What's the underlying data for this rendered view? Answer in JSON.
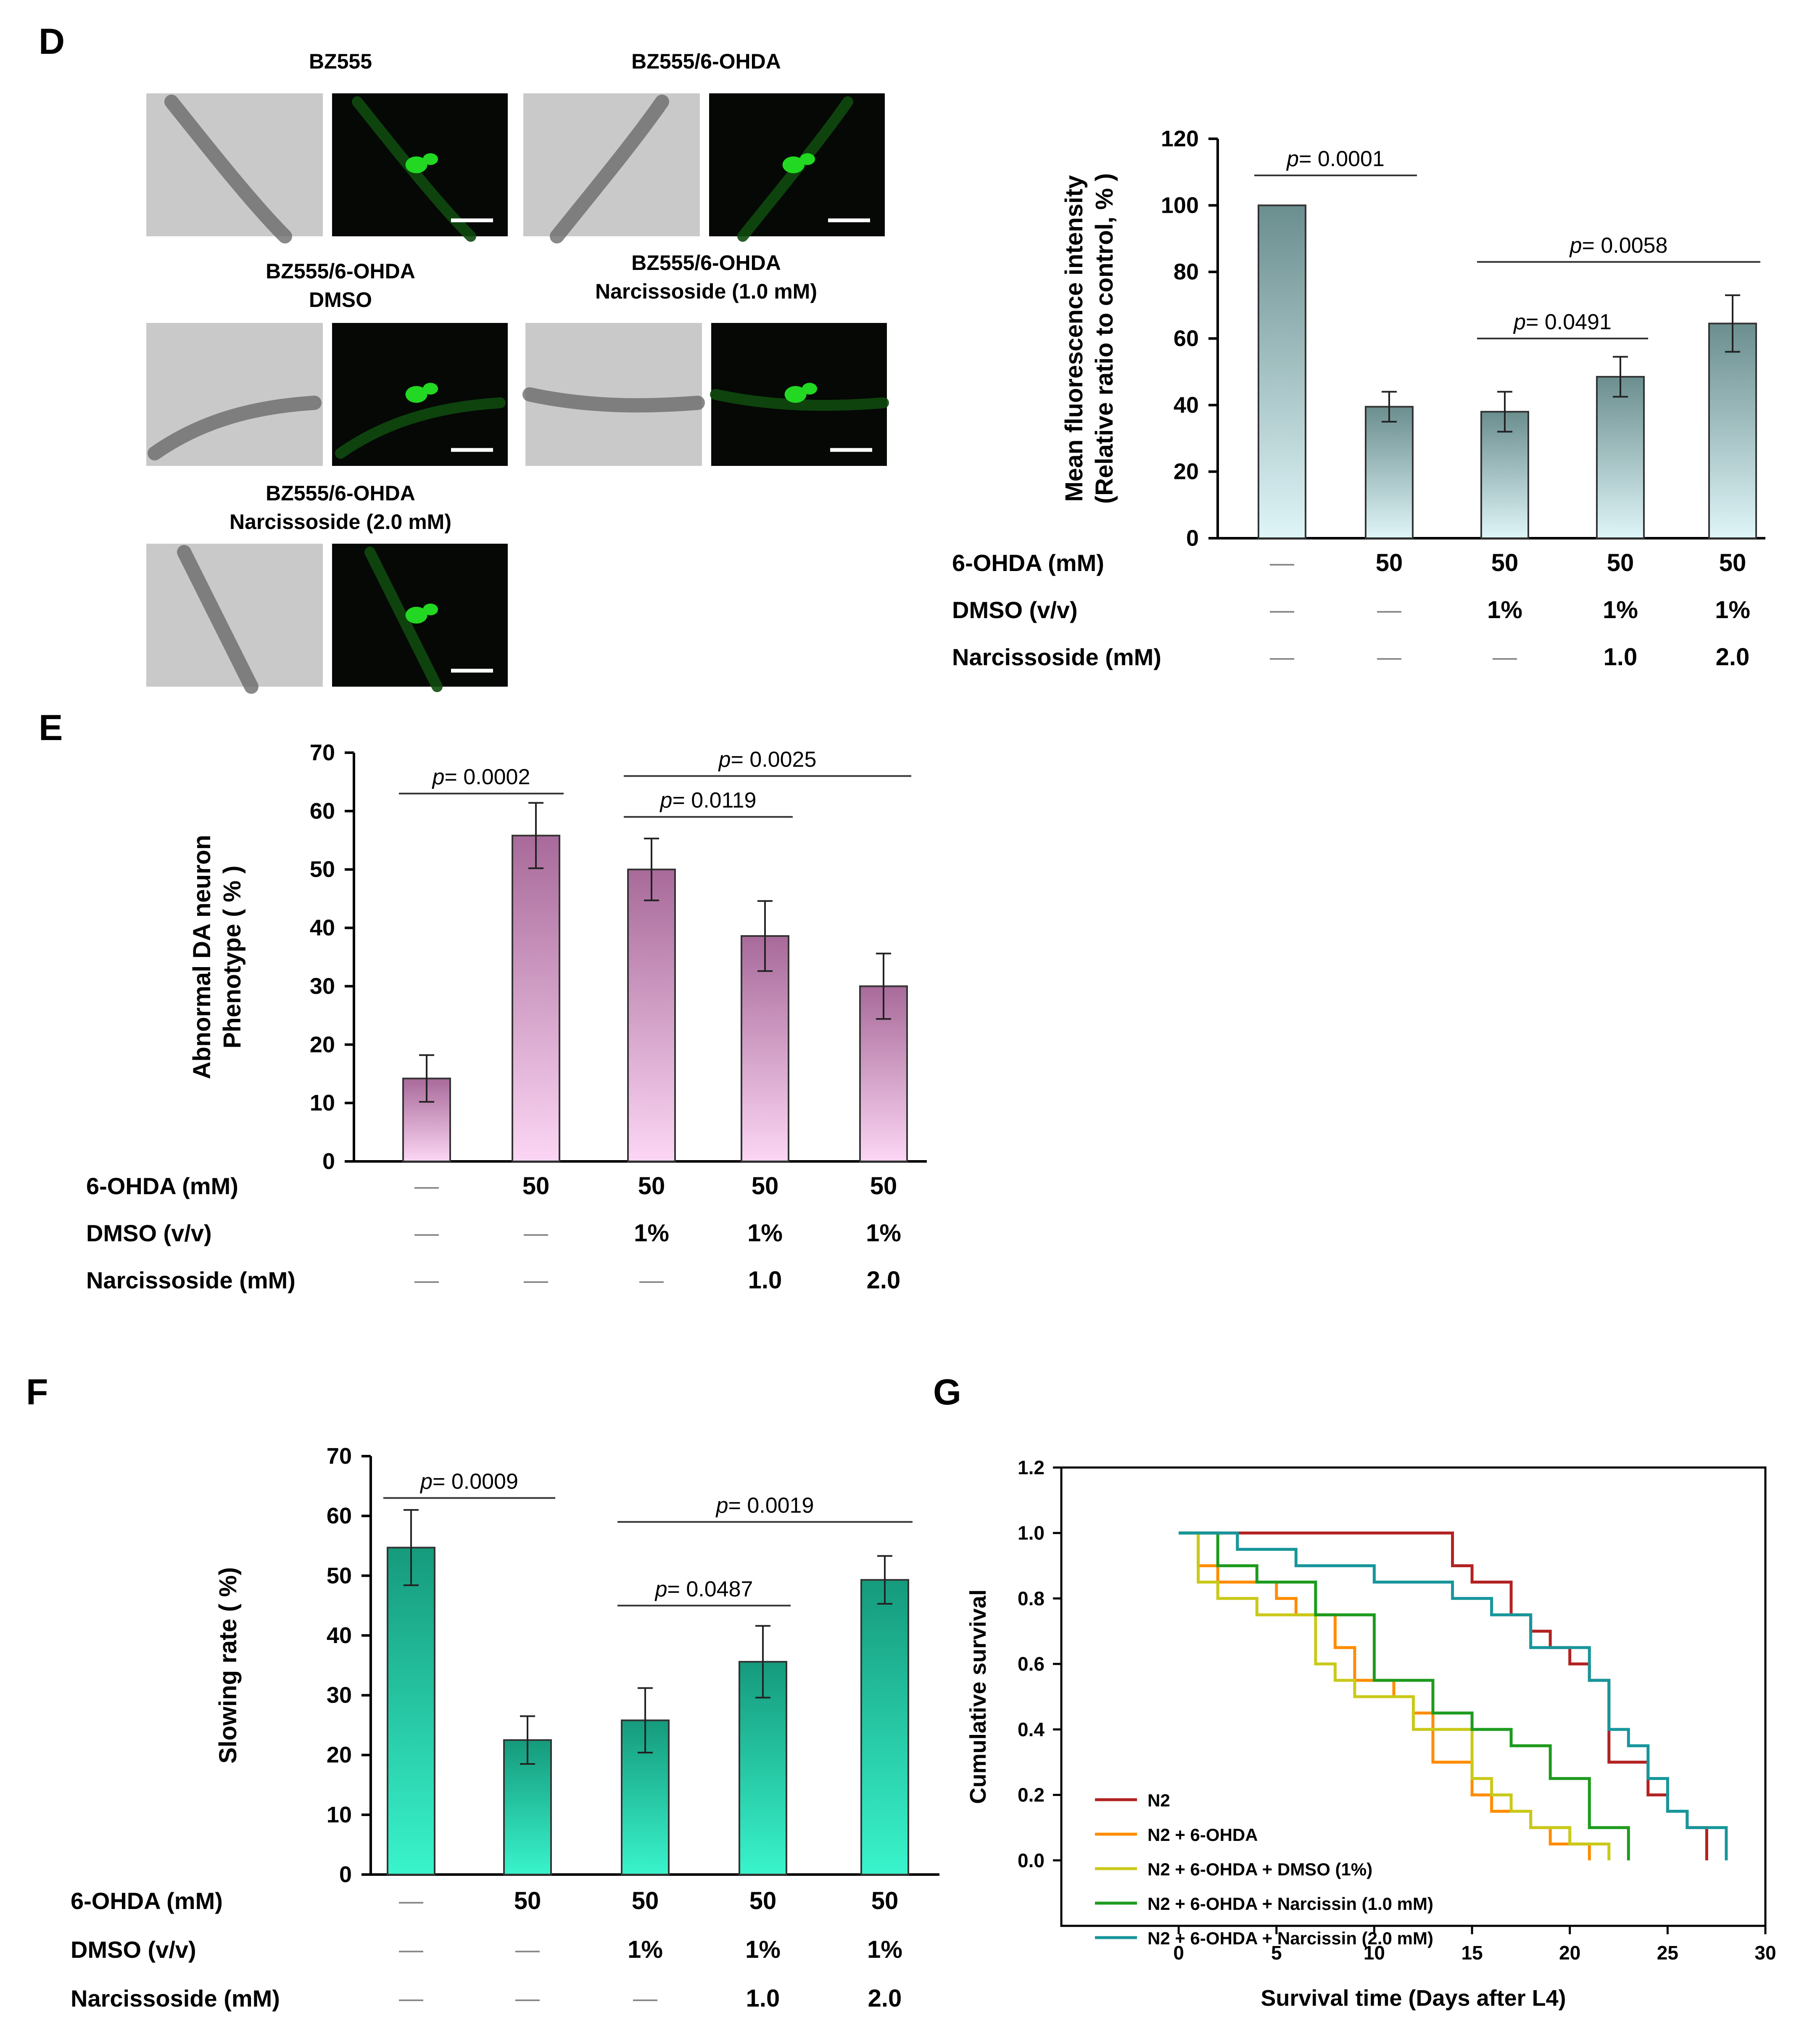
{
  "colors": {
    "green_fluor": "#22d822",
    "bar_d_top": "#6b8e8e",
    "bar_d_bottom": "#dff5f8",
    "bar_e_top": "#a86a9a",
    "bar_e_bottom": "#fcd6f4",
    "bar_f_top": "#159a7c",
    "bar_f_bottom": "#39f4cc",
    "n2": "#b22222",
    "n2_6ohda": "#ff8c00",
    "n2_dmso": "#c9c91a",
    "n2_narc1": "#1e9b1e",
    "n2_narc2": "#17969b"
  },
  "panel_d": {
    "letter": "D",
    "scale_bar": "white scale bar",
    "images": [
      {
        "label": [
          "BZ555"
        ]
      },
      {
        "label": [
          "BZ555/6-OHDA"
        ]
      },
      {
        "label": [
          "BZ555/6-OHDA",
          "DMSO"
        ]
      },
      {
        "label": [
          "BZ555/6-OHDA",
          "Narcissoside (1.0 mM)"
        ]
      },
      {
        "label": [
          "BZ555/6-OHDA",
          "Narcissoside (2.0 mM)"
        ]
      }
    ]
  },
  "conditions": {
    "ohda_label": "6-OHDA (mM)",
    "dmso_label": "DMSO (v/v)",
    "narc_label": "Narcissoside  (mM)",
    "ohda": [
      "—",
      "50",
      "50",
      "50",
      "50"
    ],
    "dmso": [
      "—",
      "—",
      "1%",
      "1%",
      "1%"
    ],
    "narc": [
      "—",
      "—",
      "—",
      "1.0",
      "2.0"
    ]
  },
  "chart_data": [
    {
      "panel": "D",
      "type": "bar",
      "categories": [
        "1",
        "2",
        "3",
        "4",
        "5"
      ],
      "values": [
        100,
        39.5,
        38,
        48.5,
        64.5
      ],
      "errors": [
        0,
        4.5,
        6,
        6,
        8.5
      ],
      "ylabel": [
        "Mean fluorescence intensity",
        "(Relative ratio to control, % )"
      ],
      "ylim": [
        0,
        120
      ],
      "yticks": [
        0,
        20,
        40,
        60,
        80,
        100,
        120
      ],
      "comparisons": [
        {
          "from": 0,
          "to": 1,
          "value": "0.0001",
          "y": 109
        },
        {
          "from": 2,
          "to": 4,
          "value": "0.0058",
          "y": 83
        },
        {
          "from": 2,
          "to": 3,
          "value": "0.0491",
          "y": 60
        }
      ]
    },
    {
      "panel": "E",
      "type": "bar",
      "letter": "E",
      "categories": [
        "1",
        "2",
        "3",
        "4",
        "5"
      ],
      "values": [
        14.2,
        55.8,
        50,
        38.6,
        30
      ],
      "errors": [
        4,
        5.6,
        5.3,
        6,
        5.6
      ],
      "ylabel": [
        "Abnormal DA neuron",
        "Phenotype ( % )"
      ],
      "ylim": [
        0,
        70
      ],
      "yticks": [
        0,
        10,
        20,
        30,
        40,
        50,
        60,
        70
      ],
      "comparisons": [
        {
          "from": 0,
          "to": 1,
          "value": "0.0002",
          "y": 63
        },
        {
          "from": 2,
          "to": 4,
          "value": "0.0025",
          "y": 66
        },
        {
          "from": 2,
          "to": 3,
          "value": "0.0119",
          "y": 59
        }
      ]
    },
    {
      "panel": "F",
      "type": "bar",
      "letter": "F",
      "categories": [
        "1",
        "2",
        "3",
        "4",
        "5"
      ],
      "values": [
        54.7,
        22.5,
        25.8,
        35.6,
        49.3
      ],
      "errors": [
        6.3,
        4,
        5.4,
        6,
        4
      ],
      "ylabel": [
        "Slowing  rate ( %)"
      ],
      "ylim": [
        0,
        70
      ],
      "yticks": [
        0,
        10,
        20,
        30,
        40,
        50,
        60,
        70
      ],
      "comparisons": [
        {
          "from": 0,
          "to": 1,
          "value": "0.0009",
          "y": 63
        },
        {
          "from": 2,
          "to": 4,
          "value": "0.0019",
          "y": 59
        },
        {
          "from": 2,
          "to": 3,
          "value": "0.0487",
          "y": 45
        }
      ]
    },
    {
      "panel": "G",
      "type": "line",
      "letter": "G",
      "xlabel": "Survival time (Days after L4)",
      "ylabel": "Cumulative survival",
      "xlim": [
        -6,
        30
      ],
      "ylim": [
        -0.2,
        1.2
      ],
      "xticks": [
        0,
        5,
        10,
        15,
        20,
        25,
        30
      ],
      "yticks": [
        0.0,
        0.2,
        0.4,
        0.6,
        0.8,
        1.0,
        1.2
      ],
      "legend_position": "bottom-left",
      "series": [
        {
          "name": "N2",
          "color": "#b22222",
          "points": [
            [
              0,
              1
            ],
            [
              14,
              1
            ],
            [
              14,
              0.9
            ],
            [
              15,
              0.9
            ],
            [
              15,
              0.85
            ],
            [
              17,
              0.85
            ],
            [
              17,
              0.75
            ],
            [
              18,
              0.75
            ],
            [
              18,
              0.7
            ],
            [
              19,
              0.7
            ],
            [
              19,
              0.65
            ],
            [
              20,
              0.65
            ],
            [
              20,
              0.6
            ],
            [
              21,
              0.6
            ],
            [
              21,
              0.55
            ],
            [
              22,
              0.55
            ],
            [
              22,
              0.3
            ],
            [
              24,
              0.3
            ],
            [
              24,
              0.2
            ],
            [
              25,
              0.2
            ],
            [
              25,
              0.15
            ],
            [
              26,
              0.15
            ],
            [
              26,
              0.1
            ],
            [
              27,
              0.1
            ],
            [
              27,
              0
            ]
          ]
        },
        {
          "name": "N2 + 6-OHDA",
          "color": "#ff8c00",
          "points": [
            [
              0,
              1
            ],
            [
              1,
              1
            ],
            [
              1,
              0.9
            ],
            [
              2,
              0.9
            ],
            [
              2,
              0.85
            ],
            [
              5,
              0.85
            ],
            [
              5,
              0.8
            ],
            [
              6,
              0.8
            ],
            [
              6,
              0.75
            ],
            [
              8,
              0.75
            ],
            [
              8,
              0.65
            ],
            [
              9,
              0.65
            ],
            [
              9,
              0.55
            ],
            [
              11,
              0.55
            ],
            [
              11,
              0.5
            ],
            [
              12,
              0.5
            ],
            [
              12,
              0.45
            ],
            [
              13,
              0.45
            ],
            [
              13,
              0.3
            ],
            [
              15,
              0.3
            ],
            [
              15,
              0.2
            ],
            [
              16,
              0.2
            ],
            [
              16,
              0.15
            ],
            [
              18,
              0.15
            ],
            [
              18,
              0.1
            ],
            [
              19,
              0.1
            ],
            [
              19,
              0.05
            ],
            [
              21,
              0.05
            ],
            [
              21,
              0
            ]
          ]
        },
        {
          "name": "N2 + 6-OHDA + DMSO (1%)",
          "color": "#c9c91a",
          "points": [
            [
              0,
              1
            ],
            [
              1,
              1
            ],
            [
              1,
              0.85
            ],
            [
              2,
              0.85
            ],
            [
              2,
              0.8
            ],
            [
              4,
              0.8
            ],
            [
              4,
              0.75
            ],
            [
              7,
              0.75
            ],
            [
              7,
              0.6
            ],
            [
              8,
              0.6
            ],
            [
              8,
              0.55
            ],
            [
              9,
              0.55
            ],
            [
              9,
              0.5
            ],
            [
              12,
              0.5
            ],
            [
              12,
              0.4
            ],
            [
              15,
              0.4
            ],
            [
              15,
              0.25
            ],
            [
              16,
              0.25
            ],
            [
              16,
              0.2
            ],
            [
              17,
              0.2
            ],
            [
              17,
              0.15
            ],
            [
              18,
              0.15
            ],
            [
              18,
              0.1
            ],
            [
              20,
              0.1
            ],
            [
              20,
              0.05
            ],
            [
              22,
              0.05
            ],
            [
              22,
              0
            ]
          ]
        },
        {
          "name": "N2 + 6-OHDA + Narcissin (1.0 mM)",
          "color": "#1e9b1e",
          "points": [
            [
              0,
              1
            ],
            [
              2,
              1
            ],
            [
              2,
              0.9
            ],
            [
              4,
              0.9
            ],
            [
              4,
              0.85
            ],
            [
              7,
              0.85
            ],
            [
              7,
              0.75
            ],
            [
              10,
              0.75
            ],
            [
              10,
              0.55
            ],
            [
              13,
              0.55
            ],
            [
              13,
              0.45
            ],
            [
              15,
              0.45
            ],
            [
              15,
              0.4
            ],
            [
              17,
              0.4
            ],
            [
              17,
              0.35
            ],
            [
              19,
              0.35
            ],
            [
              19,
              0.25
            ],
            [
              21,
              0.25
            ],
            [
              21,
              0.1
            ],
            [
              23,
              0.1
            ],
            [
              23,
              0
            ]
          ]
        },
        {
          "name": "N2 + 6-OHDA + Narcissin (2.0 mM)",
          "color": "#17969b",
          "points": [
            [
              0,
              1
            ],
            [
              3,
              1
            ],
            [
              3,
              0.95
            ],
            [
              6,
              0.95
            ],
            [
              6,
              0.9
            ],
            [
              10,
              0.9
            ],
            [
              10,
              0.85
            ],
            [
              14,
              0.85
            ],
            [
              14,
              0.8
            ],
            [
              16,
              0.8
            ],
            [
              16,
              0.75
            ],
            [
              18,
              0.75
            ],
            [
              18,
              0.65
            ],
            [
              21,
              0.65
            ],
            [
              21,
              0.55
            ],
            [
              22,
              0.55
            ],
            [
              22,
              0.4
            ],
            [
              23,
              0.4
            ],
            [
              23,
              0.35
            ],
            [
              24,
              0.35
            ],
            [
              24,
              0.25
            ],
            [
              25,
              0.25
            ],
            [
              25,
              0.15
            ],
            [
              26,
              0.15
            ],
            [
              26,
              0.1
            ],
            [
              28,
              0.1
            ],
            [
              28,
              0
            ]
          ]
        }
      ]
    }
  ]
}
